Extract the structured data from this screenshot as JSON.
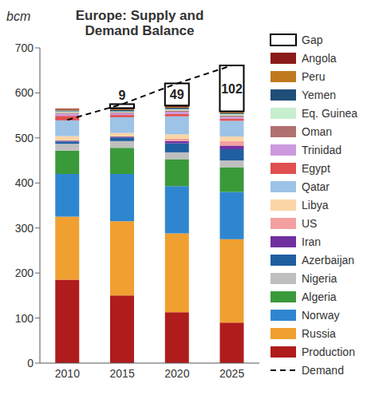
{
  "chart_data": {
    "type": "bar",
    "title": "Europe: Supply and Demand Balance",
    "y_label": "bcm",
    "categories": [
      "2010",
      "2015",
      "2020",
      "2025"
    ],
    "ylim": [
      0,
      700
    ],
    "yticks": [
      0,
      100,
      200,
      300,
      400,
      500,
      600,
      700
    ],
    "grid": false,
    "stacked": true,
    "legend": "right",
    "series": [
      {
        "name": "Production",
        "color": "#b01c1c",
        "values": [
          185,
          150,
          113,
          90
        ]
      },
      {
        "name": "Russia",
        "color": "#f0a030",
        "values": [
          140,
          165,
          175,
          185
        ]
      },
      {
        "name": "Norway",
        "color": "#2f86d0",
        "values": [
          95,
          105,
          105,
          105
        ]
      },
      {
        "name": "Algeria",
        "color": "#3a9a3a",
        "values": [
          52,
          58,
          60,
          55
        ]
      },
      {
        "name": "Nigeria",
        "color": "#bfbfbf",
        "values": [
          15,
          15,
          15,
          15
        ]
      },
      {
        "name": "Azerbaijan",
        "color": "#1f5fa0",
        "values": [
          5,
          8,
          20,
          25
        ]
      },
      {
        "name": "Iran",
        "color": "#7030a0",
        "values": [
          2,
          2,
          5,
          8
        ]
      },
      {
        "name": "US",
        "color": "#f4a0a0",
        "values": [
          0,
          0,
          5,
          10
        ]
      },
      {
        "name": "Libya",
        "color": "#fbd5a5",
        "values": [
          10,
          8,
          10,
          10
        ]
      },
      {
        "name": "Qatar",
        "color": "#9dc3e6",
        "values": [
          35,
          35,
          40,
          35
        ]
      },
      {
        "name": "Egypt",
        "color": "#e05050",
        "values": [
          10,
          5,
          5,
          5
        ]
      },
      {
        "name": "Trinidad",
        "color": "#cc99dd",
        "values": [
          5,
          4,
          5,
          4
        ]
      },
      {
        "name": "Oman",
        "color": "#b07070",
        "values": [
          2,
          2,
          3,
          3
        ]
      },
      {
        "name": "Eq. Guinea",
        "color": "#c6efce",
        "values": [
          3,
          2,
          3,
          3
        ]
      },
      {
        "name": "Yemen",
        "color": "#1f4e79",
        "values": [
          2,
          3,
          3,
          2
        ]
      },
      {
        "name": "Peru",
        "color": "#c07a1e",
        "values": [
          2,
          2,
          2,
          2
        ]
      },
      {
        "name": "Angola",
        "color": "#8b1a1a",
        "values": [
          2,
          2,
          3,
          2
        ]
      },
      {
        "name": "Gap",
        "color": "#ffffff",
        "data_labels": true,
        "values": [
          null,
          9,
          49,
          102
        ]
      },
      {
        "name": "Demand",
        "type": "line",
        "color": "#000000",
        "line_style": "dashed",
        "values": [
          540,
          575,
          621,
          661
        ]
      }
    ]
  }
}
